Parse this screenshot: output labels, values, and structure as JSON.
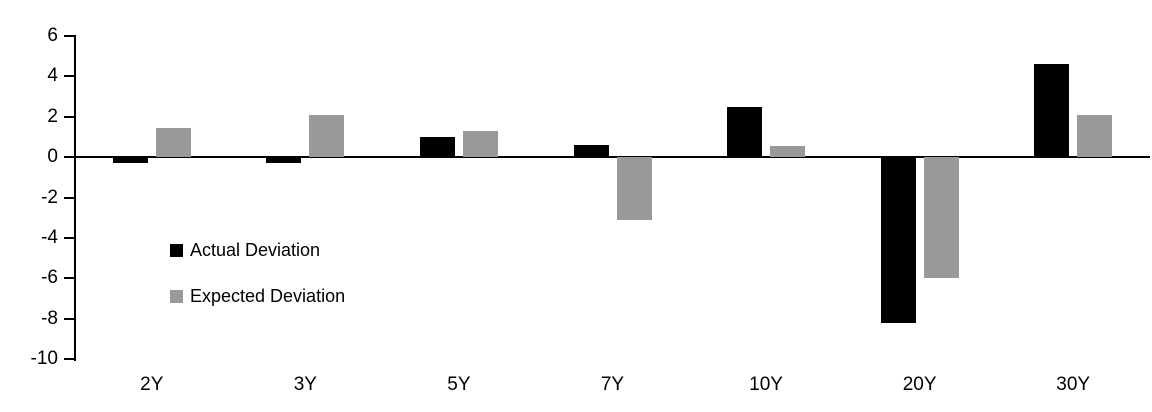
{
  "chart_data": {
    "type": "bar",
    "title": "",
    "xlabel": "",
    "ylabel": "",
    "categories": [
      "2Y",
      "3Y",
      "5Y",
      "7Y",
      "10Y",
      "20Y",
      "30Y"
    ],
    "series": [
      {
        "name": "Actual Deviation",
        "color": "#000000",
        "values": [
          -0.3,
          -0.3,
          1.0,
          0.6,
          2.5,
          -8.2,
          4.6
        ]
      },
      {
        "name": "Expected Deviation",
        "color": "#999999",
        "values": [
          1.45,
          2.1,
          1.3,
          -3.1,
          0.55,
          -6.0,
          2.1
        ]
      }
    ],
    "ylim": [
      -10,
      6
    ],
    "yticks": [
      6,
      4,
      2,
      0,
      -2,
      -4,
      -6,
      -8,
      -10
    ],
    "grid": false,
    "legend_position": "inside-left",
    "axis_color": "#000000",
    "background_color": "#ffffff"
  }
}
